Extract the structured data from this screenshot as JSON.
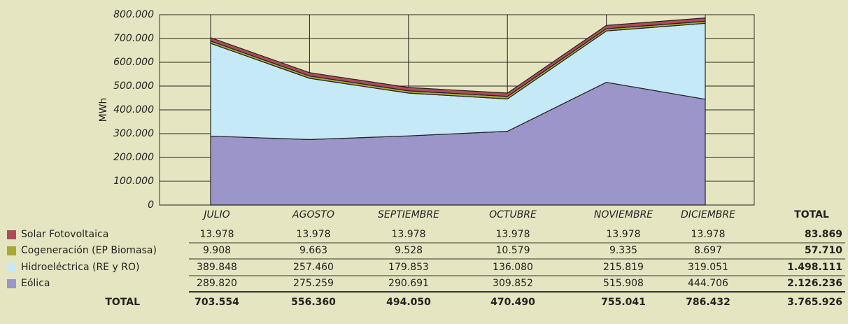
{
  "chart_data": {
    "type": "stacked_area",
    "ylabel": "MWh",
    "categories": [
      "JULIO",
      "AGOSTO",
      "SEPTIEMBRE",
      "OCTUBRE",
      "NOVIEMBRE",
      "DICIEMBRE"
    ],
    "ylim": [
      0,
      800000
    ],
    "yticks": [
      0,
      {
        "value": 100000,
        "label": "100.000"
      },
      {
        "value": 200000,
        "label": "200.000"
      },
      {
        "value": 300000,
        "label": "300.000"
      },
      {
        "value": 400000,
        "label": "400.000"
      },
      {
        "value": 500000,
        "label": "500.000"
      },
      {
        "value": 600000,
        "label": "600.000"
      },
      {
        "value": 700000,
        "label": "700.000"
      },
      {
        "value": 800000,
        "label": "800.000"
      }
    ],
    "grid": true,
    "series": [
      {
        "name": "Eólica",
        "color": "#9b95c9",
        "values": [
          289820,
          275259,
          290691,
          309852,
          515908,
          444706
        ],
        "value_labels": [
          "289.820",
          "275.259",
          "290.691",
          "309.852",
          "515.908",
          "444.706"
        ],
        "total": 2126236,
        "total_label": "2.126.236"
      },
      {
        "name": "Hidroeléctrica (RE y RO)",
        "color": "#c6e9f8",
        "values": [
          389848,
          257460,
          179853,
          136080,
          215819,
          319051
        ],
        "value_labels": [
          "389.848",
          "257.460",
          "179.853",
          "136.080",
          "215.819",
          "319.051"
        ],
        "total": 1498111,
        "total_label": "1.498.111"
      },
      {
        "name": "Cogeneración (EP Biomasa)",
        "color": "#a9a935",
        "values": [
          9908,
          9663,
          9528,
          10579,
          9335,
          8697
        ],
        "value_labels": [
          "9.908",
          "9.663",
          "9.528",
          "10.579",
          "9.335",
          "8.697"
        ],
        "total": 57710,
        "total_label": "57.710"
      },
      {
        "name": "Solar Fotovoltaica",
        "color": "#b04b5c",
        "values": [
          13978,
          13978,
          13978,
          13978,
          13978,
          13978
        ],
        "value_labels": [
          "13.978",
          "13.978",
          "13.978",
          "13.978",
          "13.978",
          "13.978"
        ],
        "total": 83869,
        "total_label": "83.869"
      }
    ],
    "total_column_header": "TOTAL",
    "total_row_header": "TOTAL",
    "column_totals": [
      703554,
      556360,
      494050,
      470490,
      755041,
      786432
    ],
    "column_total_labels": [
      "703.554",
      "556.360",
      "494.050",
      "470.490",
      "755.041",
      "786.432"
    ],
    "grand_total": 3765926,
    "grand_total_label": "3.765.926"
  }
}
